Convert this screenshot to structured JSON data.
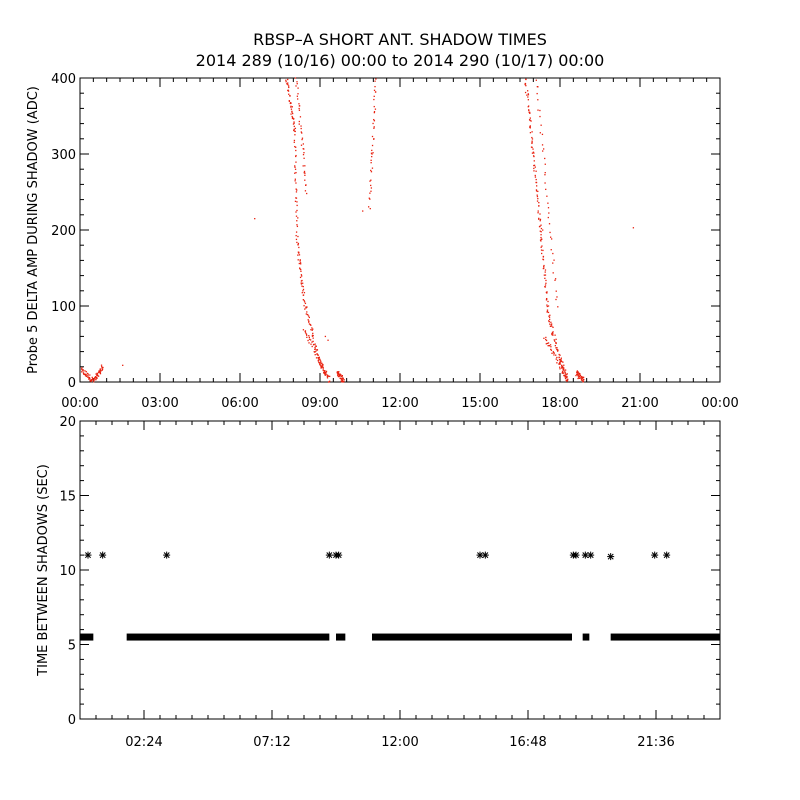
{
  "title_line1": "RBSP–A SHORT ANT. SHADOW TIMES",
  "title_line2": "2014 289 (10/16) 00:00 to 2014 290 (10/17) 00:00",
  "colors": {
    "top_points": "#e8210f",
    "bottom_points": "#000000",
    "axes": "#000000"
  },
  "chart_data": [
    {
      "type": "scatter",
      "title": "",
      "ylabel": "Probe 5 DELTA AMP DURING SHADOW (ADC)",
      "xlabel": "",
      "x_unit": "hours",
      "xlim": [
        0,
        24
      ],
      "ylim": [
        0,
        400
      ],
      "x_ticks": [
        0,
        3,
        6,
        9,
        12,
        15,
        18,
        21,
        24
      ],
      "x_tick_labels": [
        "00:00",
        "03:00",
        "06:00",
        "09:00",
        "12:00",
        "15:00",
        "18:00",
        "21:00",
        "00:00"
      ],
      "y_ticks": [
        0,
        100,
        200,
        300,
        400
      ],
      "y_tick_labels": [
        "0",
        "100",
        "200",
        "300",
        "400"
      ],
      "marker": "dot",
      "series": [
        {
          "segments": [
            {
              "x": [
                0.05,
                0.5
              ],
              "y": [
                15,
                2
              ]
            },
            {
              "x": [
                0.55,
                0.85
              ],
              "y": [
                2,
                20
              ]
            },
            {
              "x": [
                7.75,
                8.05
              ],
              "y": [
                400,
                330
              ]
            },
            {
              "x": [
                8.05,
                8.15
              ],
              "y": [
                330,
                180
              ]
            },
            {
              "x": [
                8.15,
                8.45
              ],
              "y": [
                180,
                100
              ]
            },
            {
              "x": [
                8.45,
                8.95
              ],
              "y": [
                100,
                30
              ]
            },
            {
              "x": [
                8.95,
                9.35
              ],
              "y": [
                30,
                2
              ]
            },
            {
              "x": [
                8.4,
                9.2
              ],
              "y": [
                70,
                10
              ]
            },
            {
              "x": [
                8.1,
                8.5
              ],
              "y": [
                400,
                250
              ]
            },
            {
              "x": [
                9.65,
                9.9
              ],
              "y": [
                12,
                2
              ]
            },
            {
              "x": [
                10.85,
                11.1
              ],
              "y": [
                230,
                400
              ]
            },
            {
              "x": [
                16.7,
                17.0
              ],
              "y": [
                400,
                300
              ]
            },
            {
              "x": [
                17.0,
                17.3
              ],
              "y": [
                300,
                190
              ]
            },
            {
              "x": [
                17.3,
                17.55
              ],
              "y": [
                190,
                90
              ]
            },
            {
              "x": [
                17.55,
                18.0
              ],
              "y": [
                90,
                30
              ]
            },
            {
              "x": [
                18.0,
                18.3
              ],
              "y": [
                30,
                2
              ]
            },
            {
              "x": [
                17.1,
                17.9
              ],
              "y": [
                400,
                100
              ]
            },
            {
              "x": [
                17.4,
                18.25
              ],
              "y": [
                60,
                5
              ]
            },
            {
              "x": [
                18.6,
                18.9
              ],
              "y": [
                12,
                3
              ]
            }
          ],
          "points_x": [
            1.6,
            6.55,
            10.6,
            10.95,
            20.75,
            9.2,
            9.3,
            17.25,
            17.35
          ],
          "points_y": [
            22,
            215,
            225,
            300,
            203,
            60,
            55,
            205,
            200
          ]
        }
      ]
    },
    {
      "type": "scatter",
      "title": "",
      "ylabel": "TIME BETWEEN SHADOWS (SEC)",
      "xlabel": "",
      "x_unit": "hours",
      "xlim": [
        0,
        24
      ],
      "ylim": [
        0,
        20
      ],
      "x_ticks": [
        2.4,
        7.2,
        12.0,
        16.8,
        21.6
      ],
      "x_tick_labels": [
        "02:24",
        "07:12",
        "12:00",
        "16:48",
        "21:36"
      ],
      "y_ticks": [
        0,
        5,
        10,
        15,
        20
      ],
      "y_tick_labels": [
        "0",
        "5",
        "10",
        "15",
        "20"
      ],
      "marker": "asterisk",
      "series": [
        {
          "baseline_value": 5.5,
          "baseline_ranges": [
            [
              0.0,
              0.5
            ],
            [
              1.75,
              9.35
            ],
            [
              9.6,
              9.95
            ],
            [
              10.95,
              18.45
            ],
            [
              18.85,
              19.1
            ],
            [
              19.9,
              24.0
            ]
          ],
          "points_x": [
            0.3,
            0.85,
            3.25,
            9.35,
            9.6,
            9.7,
            15.0,
            15.2,
            18.5,
            18.6,
            18.95,
            19.15,
            19.9,
            21.55,
            22.0
          ],
          "points_y": [
            11.0,
            11.0,
            11.0,
            11.0,
            11.0,
            11.0,
            11.0,
            11.0,
            11.0,
            11.0,
            11.0,
            11.0,
            10.9,
            11.0,
            11.0
          ]
        }
      ]
    }
  ]
}
